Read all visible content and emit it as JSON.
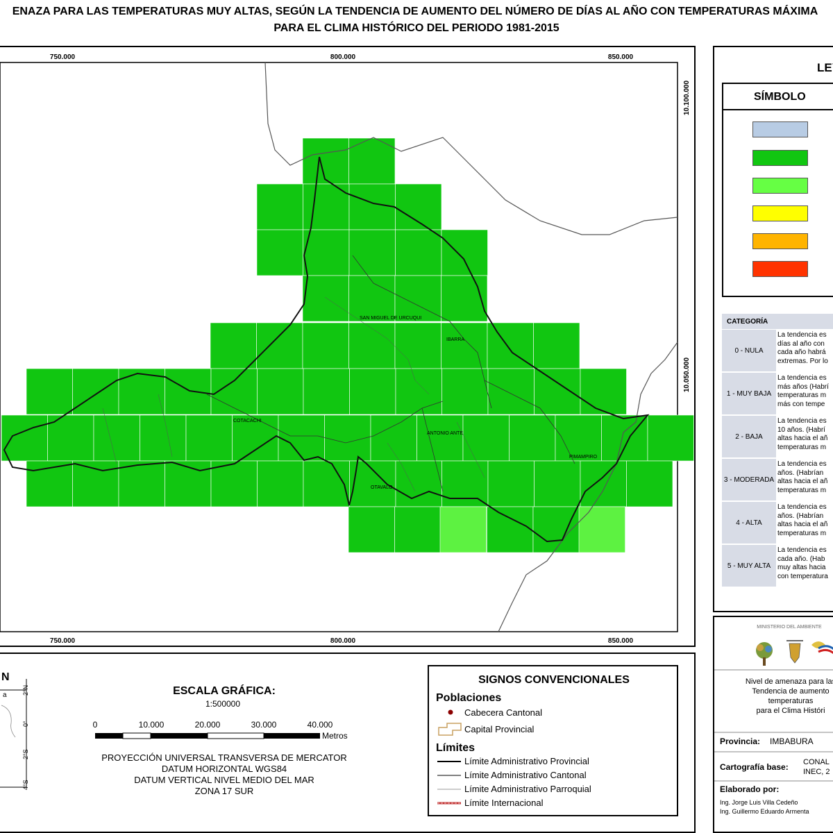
{
  "title": {
    "line1": "ENAZA PARA LAS TEMPERATURAS MUY ALTAS, SEGÚN LA TENDENCIA DE AUMENTO DEL NÚMERO DE DÍAS AL AÑO CON TEMPERATURAS MÁXIMA",
    "line2": "PARA EL CLIMA HISTÓRICO DEL PERIODO 1981-2015"
  },
  "map": {
    "x_ticks": [
      "750.000",
      "800.000",
      "850.000"
    ],
    "y_ticks": [
      "10.100.000",
      "10.050.000"
    ],
    "places": [
      "SAN MIGUEL DE URCUQUI",
      "IBARRA",
      "COTACACHI",
      "ANTONIO ANTE",
      "PIMAMPIRO",
      "OTAVALO"
    ],
    "colors": {
      "dark_green": "#11c611",
      "light_green": "#5df241",
      "grid_line": "#ffffff",
      "border": "#222222"
    }
  },
  "legend": {
    "title": "LEYENDA",
    "symbol_header": "SÍMBOLO",
    "swatches": [
      "#b8cce4",
      "#11c611",
      "#66ff44",
      "#ffff00",
      "#ffb400",
      "#ff3300"
    ],
    "category_header": "CATEGORÍA",
    "categories": [
      {
        "label": "0 - NULA",
        "desc": [
          "La tendencia es",
          "días al año con",
          "cada año habrá",
          "extremas. Por lo"
        ]
      },
      {
        "label": "1 - MUY BAJA",
        "desc": [
          "La tendencia es",
          "más años (Habrí",
          "temperaturas m",
          "más con tempe"
        ]
      },
      {
        "label": "2 - BAJA",
        "desc": [
          "La tendencia es",
          "10 años. (Habrí",
          "altas hacia el añ",
          "temperaturas m"
        ]
      },
      {
        "label": "3 - MODERADA",
        "desc": [
          "La tendencia es",
          "años. (Habrían",
          "altas hacia el añ",
          "temperaturas m"
        ]
      },
      {
        "label": "4 - ALTA",
        "desc": [
          "La tendencia es",
          "años. (Habrían",
          "altas hacia el añ",
          "temperaturas m"
        ]
      },
      {
        "label": "5 - MUY ALTA",
        "desc": [
          "La tendencia es",
          "cada año. (Hab",
          "muy altas hacia",
          "con temperatura"
        ]
      }
    ]
  },
  "scale": {
    "title": "ESCALA GRÁFICA:",
    "ratio": "1:500000",
    "ticks": [
      "0",
      "10.000",
      "20.000",
      "30.000",
      "40.000"
    ],
    "unit": "Metros",
    "projection": [
      "PROYECCIÓN UNIVERSAL TRANSVERSA DE MERCATOR",
      "DATUM HORIZONTAL WGS84",
      "DATUM VERTICAL NIVEL MEDIO DEL MAR",
      "ZONA 17 SUR"
    ]
  },
  "location": {
    "title": "N",
    "lat_ticks": [
      "2°N",
      "0°",
      "2°S",
      "4°S"
    ],
    "label": "a"
  },
  "signs": {
    "title": "SIGNOS CONVENCIONALES",
    "populations_header": "Poblaciones",
    "populations": [
      "Cabecera Cantonal",
      "Capital Provincial"
    ],
    "limits_header": "Límites",
    "limits": [
      "Límite Administrativo Provincial",
      "Límite Administrativo Cantonal",
      "Límite Administrativo Parroquial",
      "Límite Internacional"
    ]
  },
  "institution": {
    "ministry": "MINISTERIO DEL AMBIENTE",
    "desc": [
      "Nivel de amenaza para las",
      "Tendencia de aumento",
      "temperaturas",
      "para el Clima Históri"
    ],
    "province_label": "Provincia:",
    "province_value": "IMBABURA",
    "carto_label": "Cartografía base:",
    "carto_value": [
      "CONAL",
      "INEC, 2"
    ],
    "made_by_label": "Elaborado por:",
    "authors": [
      "Ing. Jorge Luis Villa Cedeño",
      "Ing. Guillermo Eduardo Armenta"
    ]
  }
}
